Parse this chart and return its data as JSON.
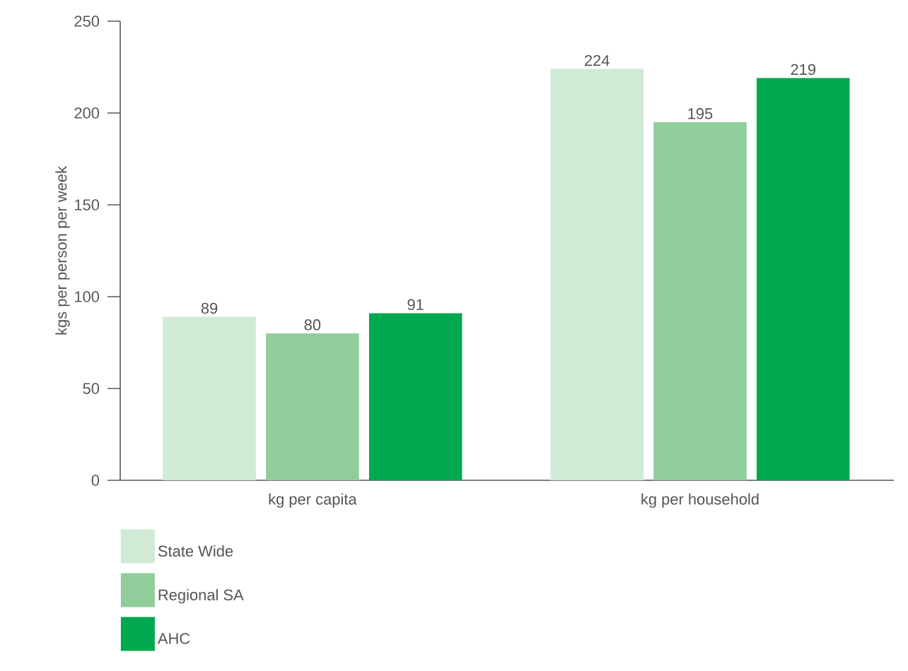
{
  "chart_data": {
    "type": "bar",
    "ylabel": "kgs per person per week",
    "categories": [
      "kg per capita",
      "kg per household"
    ],
    "series": [
      {
        "name": "State Wide",
        "color": "#d1ead6",
        "values": [
          89,
          224
        ]
      },
      {
        "name": "Regional SA",
        "color": "#90cd9a",
        "values": [
          80,
          195
        ]
      },
      {
        "name": "AHC",
        "color": "#00a84f",
        "values": [
          91,
          219
        ]
      }
    ],
    "ylim": [
      0,
      250
    ],
    "yticks": [
      0,
      50,
      100,
      150,
      200,
      250
    ],
    "data_labels": true,
    "legend": "bottom left",
    "grid": false
  }
}
